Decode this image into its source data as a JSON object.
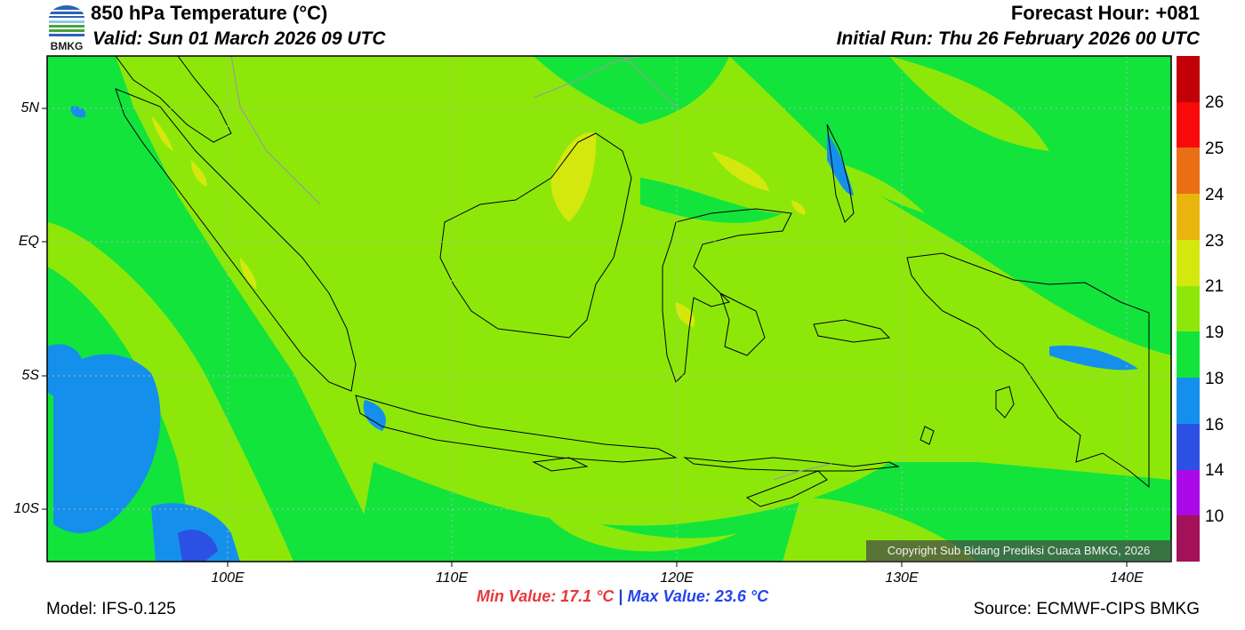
{
  "header": {
    "title": "850 hPa Temperature (°C)",
    "valid": "Valid: Sun 01 March 2026 09 UTC",
    "forecast_hour": "Forecast Hour: +081",
    "initial_run": "Initial Run: Thu 26 February 2026 00 UTC"
  },
  "logo": {
    "text": "BMKG",
    "colors": {
      "blue": "#2b63b8",
      "green": "#4aa33a"
    }
  },
  "map": {
    "background_color": "#8de80a",
    "axis_labels": {
      "lat": [
        "5N",
        "EQ",
        "5S",
        "10S"
      ],
      "lon": [
        "100E",
        "110E",
        "120E",
        "130E",
        "140E"
      ]
    },
    "copyright": "Copyright Sub Bidang Prediksi Cuaca BMKG, 2026"
  },
  "colorbar": {
    "labels": [
      "26",
      "25",
      "24",
      "23",
      "21",
      "19",
      "18",
      "16",
      "14",
      "10"
    ],
    "colors": [
      "#c10007",
      "#f80a0a",
      "#ea6e14",
      "#e9b40e",
      "#d4e80e",
      "#8de80a",
      "#12e43c",
      "#1490ec",
      "#2c50e4",
      "#ab08e8",
      "#a3115a"
    ]
  },
  "footer": {
    "model": "Model: IFS-0.125",
    "source": "Source: ECMWF-CIPS BMKG",
    "min_value": "Min Value: 17.1 °C",
    "separator": "|",
    "max_value": "Max Value: 23.6 °C"
  }
}
